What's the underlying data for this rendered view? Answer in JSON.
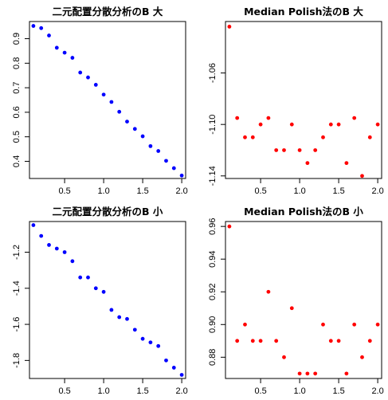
{
  "chart_data": [
    {
      "type": "scatter",
      "title": "二元配置分散分析のB 大",
      "xlabel": "",
      "ylabel": "",
      "color": "#0000ff",
      "x": [
        0.1,
        0.2,
        0.3,
        0.4,
        0.5,
        0.6,
        0.7,
        0.8,
        0.9,
        1.0,
        1.1,
        1.2,
        1.3,
        1.4,
        1.5,
        1.6,
        1.7,
        1.8,
        1.9,
        2.0
      ],
      "y": [
        0.952,
        0.943,
        0.913,
        0.863,
        0.843,
        0.822,
        0.762,
        0.742,
        0.712,
        0.672,
        0.642,
        0.602,
        0.562,
        0.532,
        0.502,
        0.462,
        0.442,
        0.402,
        0.372,
        0.342
      ],
      "xlim": [
        0.05,
        2.05
      ],
      "ylim": [
        0.33,
        0.97
      ],
      "xticks": [
        0.5,
        1.0,
        1.5,
        2.0
      ],
      "xtick_labels": [
        "0.5",
        "1.0",
        "1.5",
        "2.0"
      ],
      "yticks": [
        0.4,
        0.5,
        0.6,
        0.7,
        0.8,
        0.9
      ],
      "ytick_labels": [
        "0.4",
        "0.5",
        "0.6",
        "0.7",
        "0.8",
        "0.9"
      ]
    },
    {
      "type": "scatter",
      "title": "Median Polish法のB 大",
      "xlabel": "",
      "ylabel": "",
      "color": "#ff0000",
      "x": [
        0.1,
        0.2,
        0.3,
        0.4,
        0.5,
        0.6,
        0.7,
        0.8,
        0.9,
        1.0,
        1.1,
        1.2,
        1.3,
        1.4,
        1.5,
        1.6,
        1.7,
        1.8,
        1.9,
        2.0
      ],
      "y": [
        -1.024,
        -1.095,
        -1.11,
        -1.11,
        -1.1,
        -1.095,
        -1.12,
        -1.12,
        -1.1,
        -1.12,
        -1.13,
        -1.12,
        -1.11,
        -1.1,
        -1.1,
        -1.13,
        -1.095,
        -1.14,
        -1.11,
        -1.1
      ],
      "xlim": [
        0.05,
        2.05
      ],
      "ylim": [
        -1.142,
        -1.02
      ],
      "xticks": [
        0.5,
        1.0,
        1.5,
        2.0
      ],
      "xtick_labels": [
        "0.5",
        "1.0",
        "1.5",
        "2.0"
      ],
      "yticks": [
        -1.14,
        -1.1,
        -1.06
      ],
      "ytick_labels": [
        "-1.14",
        "-1.10",
        "-1.06"
      ]
    },
    {
      "type": "scatter",
      "title": "二元配置分散分析のB 小",
      "xlabel": "",
      "ylabel": "",
      "color": "#0000ff",
      "x": [
        0.1,
        0.2,
        0.3,
        0.4,
        0.5,
        0.6,
        0.7,
        0.8,
        0.9,
        1.0,
        1.1,
        1.2,
        1.3,
        1.4,
        1.5,
        1.6,
        1.7,
        1.8,
        1.9,
        2.0
      ],
      "y": [
        -1.05,
        -1.11,
        -1.16,
        -1.18,
        -1.2,
        -1.25,
        -1.34,
        -1.34,
        -1.4,
        -1.42,
        -1.52,
        -1.56,
        -1.57,
        -1.63,
        -1.68,
        -1.7,
        -1.72,
        -1.8,
        -1.84,
        -1.88
      ],
      "xlim": [
        0.05,
        2.05
      ],
      "ylim": [
        -1.9,
        -1.03
      ],
      "xticks": [
        0.5,
        1.0,
        1.5,
        2.0
      ],
      "xtick_labels": [
        "0.5",
        "1.0",
        "1.5",
        "2.0"
      ],
      "yticks": [
        -1.8,
        -1.6,
        -1.4,
        -1.2
      ],
      "ytick_labels": [
        "-1.8",
        "-1.6",
        "-1.4",
        "-1.2"
      ]
    },
    {
      "type": "scatter",
      "title": "Median Polish法のB 小",
      "xlabel": "",
      "ylabel": "",
      "color": "#ff0000",
      "x": [
        0.1,
        0.2,
        0.3,
        0.4,
        0.5,
        0.6,
        0.7,
        0.8,
        0.9,
        1.0,
        1.1,
        1.2,
        1.3,
        1.4,
        1.5,
        1.6,
        1.7,
        1.8,
        1.9,
        2.0
      ],
      "y": [
        0.96,
        0.89,
        0.9,
        0.89,
        0.89,
        0.92,
        0.89,
        0.88,
        0.91,
        0.87,
        0.87,
        0.87,
        0.9,
        0.89,
        0.89,
        0.87,
        0.9,
        0.88,
        0.89,
        0.9
      ],
      "xlim": [
        0.05,
        2.05
      ],
      "ylim": [
        0.867,
        0.963
      ],
      "xticks": [
        0.5,
        1.0,
        1.5,
        2.0
      ],
      "xtick_labels": [
        "0.5",
        "1.0",
        "1.5",
        "2.0"
      ],
      "yticks": [
        0.88,
        0.9,
        0.92,
        0.94,
        0.96
      ],
      "ytick_labels": [
        "0.88",
        "0.90",
        "0.92",
        "0.94",
        "0.96"
      ]
    }
  ]
}
